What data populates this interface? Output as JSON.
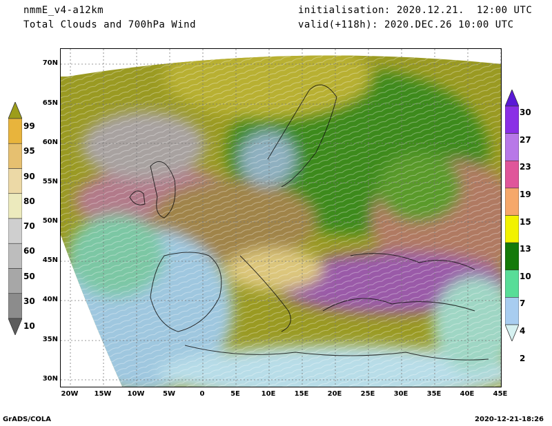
{
  "header": {
    "model": "nmmE_v4-a12km",
    "product": "Total Clouds and 700hPa Wind",
    "init": "initialisation: 2020.12.21.  12:00 UTC",
    "valid": "valid(+118h): 2020.DEC.26 10:00 UTC"
  },
  "footer": {
    "credit": "GrADS/COLA",
    "timestamp": "2020-12-21-18:26"
  },
  "map": {
    "lat_labels": [
      "70N",
      "65N",
      "60N",
      "55N",
      "50N",
      "45N",
      "40N",
      "35N",
      "30N"
    ],
    "lon_labels": [
      "20W",
      "15W",
      "10W",
      "5W",
      "0",
      "5E",
      "10E",
      "15E",
      "20E",
      "25E",
      "30E",
      "35E",
      "40E",
      "45E"
    ]
  },
  "cloud_colorbar": {
    "labels": [
      "99",
      "95",
      "90",
      "80",
      "70",
      "60",
      "50",
      "30",
      "10"
    ],
    "colors": [
      "#9d9d1a",
      "#e8b43c",
      "#e6c070",
      "#ecd9a6",
      "#eceabd",
      "#cfcfcf",
      "#bdbdbd",
      "#a7a7a7",
      "#8c8c8c",
      "#5d5d5d"
    ]
  },
  "wind_colorbar": {
    "labels": [
      "30",
      "27",
      "23",
      "19",
      "15",
      "13",
      "10",
      "7",
      "4",
      "2"
    ],
    "colors": [
      "#5a19d6",
      "#8a2fe6",
      "#b878e8",
      "#e0559a",
      "#f6a86a",
      "#f2f200",
      "#147a0a",
      "#58dd98",
      "#a8cdf0",
      "#d6f1f1"
    ]
  }
}
